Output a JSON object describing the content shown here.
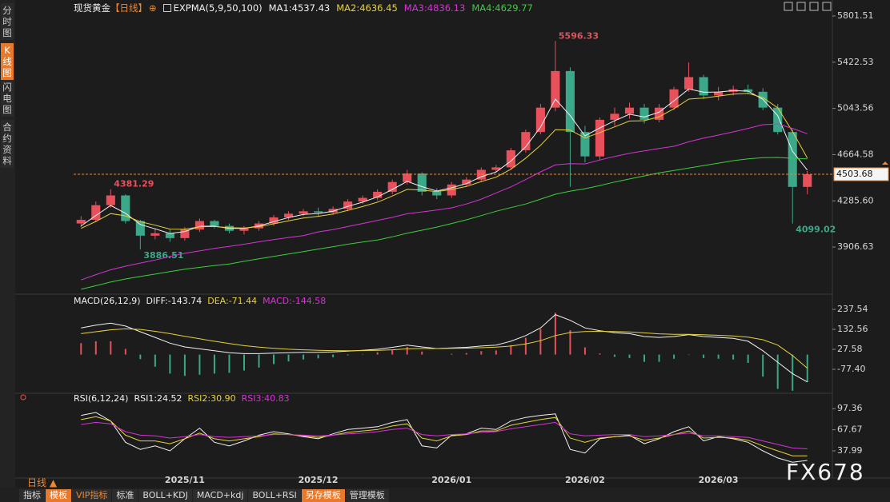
{
  "sidebar": [
    "分时图",
    "K线图",
    "闪电图",
    "合约资料"
  ],
  "header": {
    "title": "现货黄金",
    "period": "【日线】"
  },
  "period_selector": "日线 ▲",
  "toolbar": [
    "指标",
    "模板",
    "VIP指标",
    "标准",
    "BOLL+KDJ",
    "MACD+kdj",
    "BOLL+RSI",
    "另存模板",
    "管理模板"
  ],
  "logo": "FX678",
  "chart_data": [
    {
      "type": "candlestick",
      "indicator": "EXPMA(5,9,50,100)",
      "up_color": "#e8505b",
      "down_color": "#3aa889",
      "categories": [
        null,
        null,
        null,
        null,
        null,
        null,
        null,
        "2025/11",
        null,
        null,
        null,
        null,
        null,
        null,
        null,
        null,
        "2025/12",
        null,
        null,
        null,
        null,
        null,
        null,
        null,
        null,
        "2026/01",
        null,
        null,
        null,
        null,
        null,
        null,
        null,
        null,
        "2026/02",
        null,
        null,
        null,
        null,
        null,
        null,
        null,
        null,
        "2026/03",
        null,
        null,
        null,
        null,
        null,
        null
      ],
      "open": [
        4100,
        4130,
        4250,
        4330,
        4120,
        4000,
        4020,
        3980,
        4050,
        4120,
        4080,
        4040,
        4060,
        4100,
        4150,
        4180,
        4200,
        4190,
        4220,
        4280,
        4310,
        4360,
        4440,
        4510,
        4360,
        4330,
        4420,
        4460,
        4540,
        4560,
        4700,
        4850,
        5050,
        5350,
        4850,
        4650,
        4950,
        5000,
        5050,
        4950,
        5050,
        5200,
        5300,
        5150,
        5180,
        5200,
        5180,
        5050,
        4850,
        4400
      ],
      "high": [
        4160,
        4280,
        4381.29,
        4340,
        4130,
        4060,
        4050,
        4070,
        4140,
        4130,
        4100,
        4080,
        4120,
        4170,
        4200,
        4220,
        4230,
        4240,
        4300,
        4330,
        4380,
        4460,
        4540,
        4520,
        4390,
        4440,
        4480,
        4560,
        4580,
        4720,
        4870,
        5080,
        5596.33,
        5380,
        4900,
        4970,
        5050,
        5090,
        5080,
        5080,
        5220,
        5420,
        5320,
        5220,
        5230,
        5240,
        5210,
        5080,
        4870,
        4530
      ],
      "low": [
        4070,
        4110,
        4230,
        4100,
        3886.51,
        3970,
        3950,
        3960,
        4030,
        4060,
        4020,
        4010,
        4040,
        4080,
        4130,
        4160,
        4160,
        4170,
        4200,
        4260,
        4290,
        4340,
        4420,
        4330,
        4300,
        4310,
        4400,
        4440,
        4520,
        4540,
        4680,
        4830,
        5020,
        4400,
        4600,
        4620,
        4900,
        4960,
        4920,
        4930,
        5030,
        5180,
        5120,
        5110,
        5150,
        5160,
        5030,
        4830,
        4099.02,
        4340
      ],
      "close": [
        4130,
        4250,
        4330,
        4120,
        4000,
        4020,
        3980,
        4050,
        4120,
        4080,
        4040,
        4060,
        4100,
        4150,
        4180,
        4200,
        4190,
        4220,
        4280,
        4310,
        4360,
        4440,
        4510,
        4360,
        4330,
        4420,
        4460,
        4540,
        4560,
        4700,
        4850,
        5050,
        5350,
        4850,
        4650,
        4950,
        5000,
        5050,
        4950,
        5050,
        5200,
        5300,
        5150,
        5180,
        5200,
        5180,
        5050,
        4850,
        4400,
        4503.68
      ],
      "series": [
        {
          "name": "MA1:4537.43",
          "color": "#f2f2f2",
          "values": [
            4080,
            4165,
            4248,
            4184,
            4092,
            4056,
            4018,
            4034,
            4077,
            4078,
            4059,
            4060,
            4080,
            4115,
            4148,
            4174,
            4182,
            4201,
            4240,
            4275,
            4318,
            4379,
            4445,
            4402,
            4366,
            4393,
            4427,
            4483,
            4522,
            4611,
            4730,
            4890,
            5120,
            4985,
            4818,
            4884,
            4942,
            4996,
            4973,
            5012,
            5106,
            5203,
            5176,
            5178,
            5189,
            5185,
            5118,
            4984,
            4692,
            4537.43
          ]
        },
        {
          "name": "MA2:4636.45",
          "color": "#e6d23a",
          "values": [
            4060,
            4117,
            4181,
            4163,
            4114,
            4086,
            4054,
            4053,
            4073,
            4075,
            4065,
            4063,
            4074,
            4097,
            4122,
            4145,
            4159,
            4177,
            4208,
            4239,
            4275,
            4325,
            4380,
            4374,
            4361,
            4379,
            4403,
            4444,
            4479,
            4545,
            4636,
            4741,
            4869,
            4866,
            4801,
            4846,
            4892,
            4940,
            4943,
            4975,
            5042,
            5120,
            5129,
            5144,
            5161,
            5167,
            5132,
            5048,
            4854,
            4636.45
          ]
        },
        {
          "name": "MA3:4836.13",
          "color": "#d633d6",
          "values": [
            3637,
            3680,
            3720,
            3750,
            3775,
            3800,
            3830,
            3855,
            3875,
            3895,
            3912,
            3930,
            3950,
            3968,
            3985,
            4000,
            4031,
            4050,
            4075,
            4100,
            4125,
            4150,
            4180,
            4195,
            4210,
            4228,
            4260,
            4300,
            4350,
            4400,
            4460,
            4523,
            4580,
            4590,
            4588,
            4620,
            4650,
            4675,
            4695,
            4715,
            4733,
            4770,
            4800,
            4825,
            4851,
            4880,
            4910,
            4916,
            4880,
            4836.13
          ]
        },
        {
          "name": "MA4:4629.77",
          "color": "#3ccf3c",
          "values": [
            3560,
            3590,
            3620,
            3645,
            3665,
            3685,
            3705,
            3725,
            3740,
            3755,
            3768,
            3790,
            3810,
            3830,
            3850,
            3870,
            3890,
            3910,
            3930,
            3948,
            3965,
            3990,
            4020,
            4045,
            4070,
            4100,
            4130,
            4165,
            4200,
            4230,
            4260,
            4300,
            4340,
            4365,
            4385,
            4411,
            4440,
            4465,
            4490,
            4515,
            4535,
            4555,
            4575,
            4595,
            4615,
            4630,
            4640,
            4641,
            4635,
            4629.77
          ]
        }
      ],
      "last_price_color": "#f0862e",
      "ylim": [
        3540,
        5867
      ],
      "yticks": [
        5801.51,
        5422.53,
        5043.56,
        4664.58,
        {
          "value": 4285.6,
          "label": "4285.60"
        },
        3906.63
      ],
      "grid": false
    },
    {
      "type": "macd",
      "title": "MACD(26,12,9)",
      "series": [
        {
          "name": "DIFF:-143.74",
          "color": "#f2f2f2",
          "values": [
            140,
            155,
            165,
            150,
            120,
            90,
            60,
            40,
            30,
            20,
            10,
            5,
            5,
            8,
            10,
            12,
            12,
            14,
            18,
            22,
            28,
            38,
            50,
            40,
            32,
            35,
            38,
            45,
            50,
            70,
            100,
            140,
            210,
            180,
            140,
            125,
            115,
            110,
            95,
            90,
            95,
            105,
            95,
            90,
            85,
            70,
            20,
            -40,
            -100,
            -143.74
          ]
        },
        {
          "name": "DEA:-71.44",
          "color": "#e6d23a",
          "values": [
            110,
            120,
            130,
            135,
            132,
            122,
            110,
            96,
            83,
            70,
            58,
            47,
            39,
            33,
            28,
            25,
            22,
            21,
            20,
            21,
            22,
            25,
            30,
            32,
            32,
            33,
            34,
            36,
            39,
            45,
            56,
            73,
            100,
            116,
            121,
            122,
            121,
            119,
            114,
            109,
            106,
            106,
            104,
            101,
            98,
            92,
            78,
            50,
            -5,
            -71.44
          ]
        }
      ],
      "histogram": {
        "name": "MACD:-144.58",
        "color": "#d633d6",
        "up_color": "#e8505b",
        "down_color": "#3aa889",
        "values": [
          60,
          70,
          70,
          30,
          -24,
          -64,
          -100,
          -112,
          -106,
          -100,
          -96,
          -84,
          -68,
          -50,
          -36,
          -26,
          -20,
          -14,
          -4,
          2,
          12,
          26,
          40,
          16,
          0,
          4,
          8,
          18,
          22,
          50,
          88,
          134,
          220,
          128,
          38,
          6,
          -12,
          -18,
          -38,
          -38,
          -22,
          -2,
          -18,
          -22,
          -26,
          -44,
          -116,
          -180,
          -190,
          -144.58
        ]
      },
      "ylim": [
        -195,
        309
      ],
      "yticks": [
        237.54,
        132.56,
        27.58,
        {
          "value": -77.4,
          "label": "-77.40"
        }
      ],
      "grid": false
    },
    {
      "type": "line",
      "title": "RSI(6,12,24)",
      "series": [
        {
          "name": "RSI1:24.52",
          "color": "#f2f2f2",
          "values": [
            88,
            92,
            80,
            50,
            40,
            45,
            38,
            55,
            70,
            50,
            45,
            52,
            60,
            65,
            62,
            58,
            55,
            62,
            68,
            70,
            72,
            78,
            82,
            45,
            42,
            60,
            62,
            70,
            68,
            80,
            85,
            88,
            90,
            40,
            35,
            55,
            58,
            60,
            48,
            55,
            65,
            72,
            52,
            58,
            55,
            50,
            38,
            28,
            22,
            24.52
          ]
        },
        {
          "name": "RSI2:30.90",
          "color": "#e6d23a",
          "values": [
            82,
            86,
            80,
            60,
            52,
            52,
            48,
            55,
            63,
            55,
            52,
            55,
            58,
            62,
            61,
            59,
            57,
            60,
            64,
            66,
            68,
            73,
            76,
            56,
            52,
            59,
            61,
            66,
            66,
            74,
            78,
            82,
            85,
            56,
            50,
            56,
            58,
            59,
            53,
            56,
            61,
            66,
            56,
            57,
            56,
            53,
            45,
            38,
            31,
            30.9
          ]
        },
        {
          "name": "RSI3:40.83",
          "color": "#d633d6",
          "values": [
            75,
            78,
            76,
            65,
            60,
            59,
            56,
            58,
            61,
            58,
            57,
            58,
            59,
            61,
            61,
            60,
            59,
            60,
            62,
            63,
            65,
            68,
            70,
            61,
            59,
            61,
            62,
            64,
            65,
            69,
            72,
            75,
            78,
            62,
            59,
            60,
            61,
            61,
            58,
            59,
            61,
            63,
            59,
            59,
            58,
            57,
            52,
            47,
            42,
            40.83
          ]
        }
      ],
      "ylim": [
        2,
        110
      ],
      "yticks": [
        97.36,
        67.67,
        37.99
      ],
      "grid": false
    }
  ]
}
